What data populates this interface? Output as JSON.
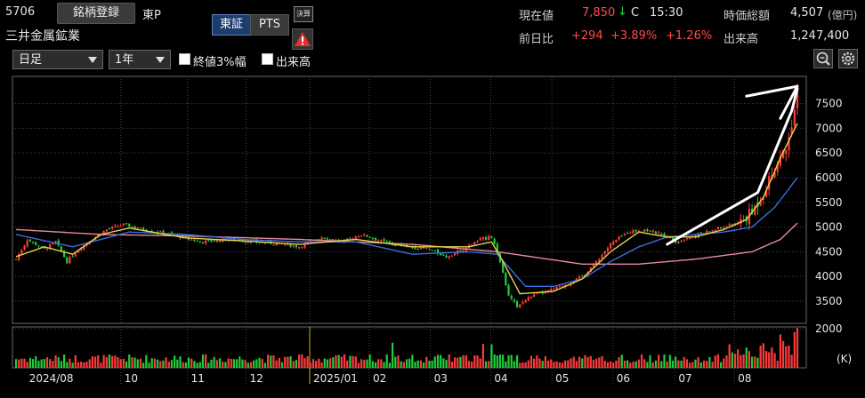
{
  "header": {
    "code": "5706",
    "register_label": "銘柄登録",
    "market": "東P",
    "name": "三井金属鉱業",
    "exchange_tabs": [
      "東証",
      "PTS"
    ],
    "settlement_badge": "決算",
    "warning_icon": "warning-icon"
  },
  "quote": {
    "price_label": "現在値",
    "price": "7,850",
    "arrow": "↓",
    "flag": "C",
    "time": "15:30",
    "change_label": "前日比",
    "change": "+294",
    "change_pct": "+3.89%",
    "change_pct2": "+1.26%",
    "mcap_label": "時価総額",
    "mcap": "4,507",
    "mcap_unit": "(億円)",
    "volume_label": "出来高",
    "volume": "1,247,400"
  },
  "controls": {
    "period": "日足",
    "range": "1年",
    "opt1_label": "終値3%幅",
    "opt1_checked": false,
    "opt2_label": "出来高",
    "opt2_checked": true,
    "zoom_icon": "zoom-icon",
    "settings_icon": "gear-icon"
  },
  "colors": {
    "up": "#ff3a3a",
    "down": "#1fce3a",
    "ma_short": "#e8d24a",
    "ma_mid": "#3b6fe0",
    "ma_long": "#e88a9a",
    "trend": "#ffffff"
  },
  "chart_data": {
    "type": "candlestick",
    "y_ticks": [
      3500,
      4000,
      4500,
      5000,
      5500,
      6000,
      6500,
      7000,
      7500
    ],
    "ylim": [
      3050,
      8050
    ],
    "volume_ticks": [
      "2000",
      "(K)"
    ],
    "volume_ylim": [
      0,
      2100
    ],
    "x_labels": [
      "2024/08",
      "10",
      "11",
      "12",
      "2025/01",
      "02",
      "03",
      "04",
      "05",
      "06",
      "07",
      "08"
    ],
    "anchors": [
      [
        0,
        4350
      ],
      [
        4,
        4750
      ],
      [
        10,
        4550
      ],
      [
        14,
        4700
      ],
      [
        18,
        4300
      ],
      [
        22,
        4550
      ],
      [
        28,
        4800
      ],
      [
        32,
        4950
      ],
      [
        38,
        5050
      ],
      [
        45,
        4950
      ],
      [
        55,
        4850
      ],
      [
        65,
        4700
      ],
      [
        75,
        4750
      ],
      [
        85,
        4700
      ],
      [
        95,
        4650
      ],
      [
        100,
        4600
      ],
      [
        108,
        4800
      ],
      [
        115,
        4700
      ],
      [
        122,
        4850
      ],
      [
        130,
        4700
      ],
      [
        138,
        4600
      ],
      [
        146,
        4550
      ],
      [
        152,
        4400
      ],
      [
        158,
        4550
      ],
      [
        164,
        4750
      ],
      [
        168,
        4800
      ],
      [
        171,
        4300
      ],
      [
        174,
        3600
      ],
      [
        177,
        3400
      ],
      [
        182,
        3600
      ],
      [
        188,
        3700
      ],
      [
        195,
        3850
      ],
      [
        200,
        4000
      ],
      [
        205,
        4300
      ],
      [
        210,
        4650
      ],
      [
        216,
        4900
      ],
      [
        222,
        4950
      ],
      [
        228,
        4850
      ],
      [
        233,
        4700
      ],
      [
        238,
        4800
      ],
      [
        244,
        4900
      ],
      [
        250,
        5000
      ],
      [
        256,
        5100
      ],
      [
        260,
        5300
      ],
      [
        264,
        5700
      ],
      [
        268,
        6200
      ],
      [
        272,
        6600
      ],
      [
        274,
        7100
      ],
      [
        276,
        7850
      ]
    ],
    "ma_short": [
      [
        0,
        4400
      ],
      [
        10,
        4600
      ],
      [
        20,
        4450
      ],
      [
        30,
        4850
      ],
      [
        40,
        4980
      ],
      [
        60,
        4780
      ],
      [
        80,
        4720
      ],
      [
        100,
        4650
      ],
      [
        120,
        4750
      ],
      [
        140,
        4600
      ],
      [
        160,
        4600
      ],
      [
        168,
        4700
      ],
      [
        172,
        4300
      ],
      [
        178,
        3650
      ],
      [
        190,
        3700
      ],
      [
        200,
        3950
      ],
      [
        210,
        4500
      ],
      [
        220,
        4900
      ],
      [
        230,
        4800
      ],
      [
        240,
        4800
      ],
      [
        250,
        4950
      ],
      [
        258,
        5150
      ],
      [
        264,
        5600
      ],
      [
        270,
        6400
      ],
      [
        276,
        7100
      ]
    ],
    "ma_mid": [
      [
        0,
        4850
      ],
      [
        20,
        4600
      ],
      [
        40,
        4900
      ],
      [
        60,
        4850
      ],
      [
        80,
        4750
      ],
      [
        100,
        4700
      ],
      [
        120,
        4700
      ],
      [
        140,
        4450
      ],
      [
        160,
        4500
      ],
      [
        170,
        4450
      ],
      [
        180,
        3800
      ],
      [
        190,
        3800
      ],
      [
        200,
        3950
      ],
      [
        210,
        4300
      ],
      [
        220,
        4600
      ],
      [
        230,
        4800
      ],
      [
        240,
        4850
      ],
      [
        250,
        4900
      ],
      [
        260,
        5000
      ],
      [
        268,
        5400
      ],
      [
        276,
        6000
      ]
    ],
    "ma_long": [
      [
        0,
        4950
      ],
      [
        30,
        4850
      ],
      [
        60,
        4820
      ],
      [
        100,
        4750
      ],
      [
        140,
        4650
      ],
      [
        170,
        4500
      ],
      [
        200,
        4250
      ],
      [
        220,
        4250
      ],
      [
        240,
        4350
      ],
      [
        260,
        4500
      ],
      [
        270,
        4750
      ],
      [
        276,
        5080
      ]
    ],
    "trend_line": [
      [
        230,
        4650
      ],
      [
        262,
        5700
      ],
      [
        274,
        7350
      ],
      [
        276,
        7800
      ]
    ],
    "trend_arrow": [
      [
        258,
        7650
      ],
      [
        276,
        7850
      ],
      [
        270,
        7200
      ]
    ],
    "n_bars": 277
  }
}
